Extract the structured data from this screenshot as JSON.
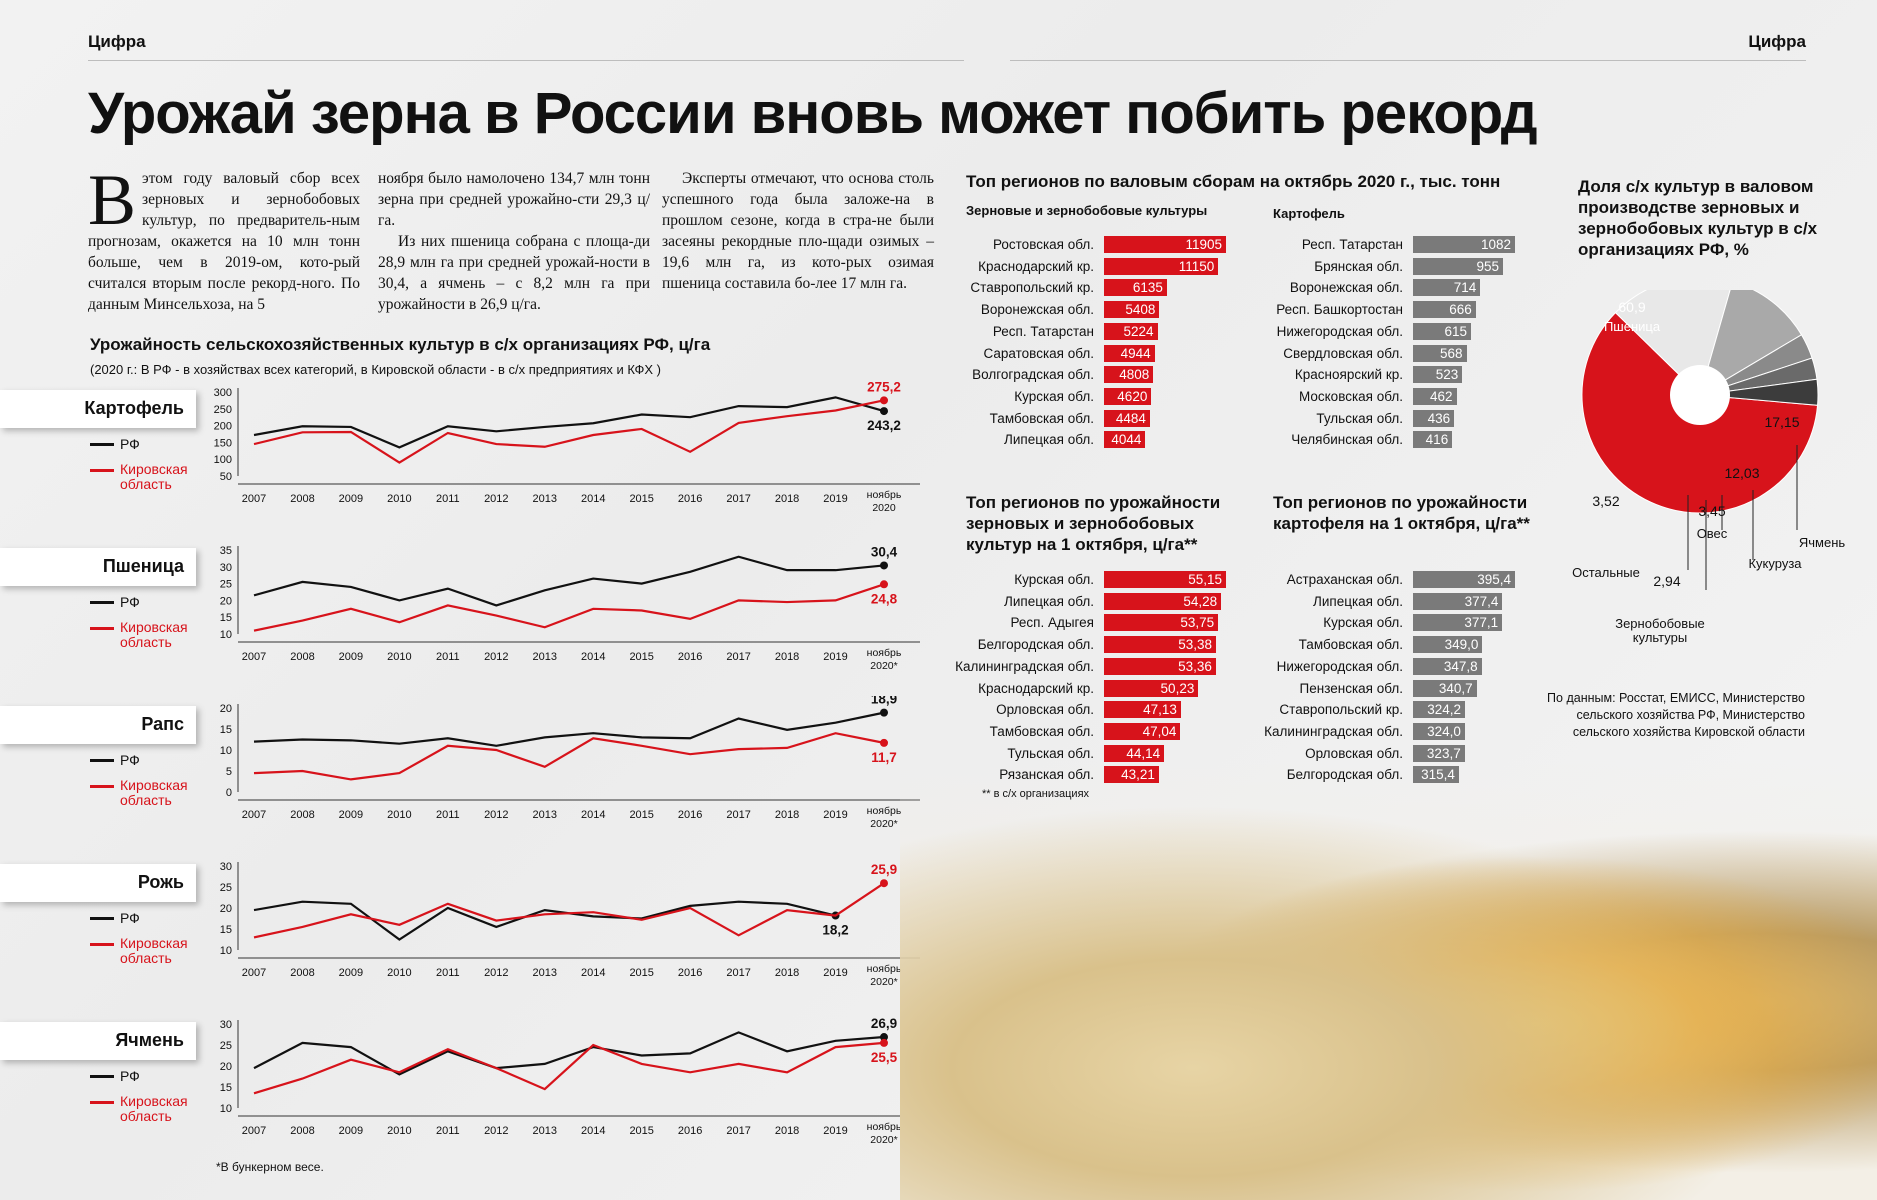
{
  "section_left": "Цифра",
  "section_right": "Цифра",
  "title": "Урожай зерна в России вновь   может побить рекорд",
  "article": {
    "dropcap": "В",
    "col1": "этом году валовый сбор всех зерновых и зернобобовых культур, по предваритель-ным прогнозам, окажется на 10 млн тонн больше, чем в 2019-ом, кото-рый считался вторым после рекорд-ного. По данным Минсельхоза, на 5",
    "col2_p1": "ноября было намолочено 134,7 млн тонн зерна при средней урожайно-сти 29,3 ц/га.",
    "col2_p2": "Из них пшеница собрана с площа-ди 28,9 млн га при средней урожай-ности в 30,4, а ячмень – с 8,2 млн га при урожайности в 26,9 ц/га.",
    "col3": "Эксперты отмечают, что основа столь успешного года была заложе-на в прошлом сезоне, когда в стра-не были засеяны рекордные пло-щади озимых – 19,6 млн га, из кото-рых озимая пшеница составила бо-лее 17 млн га."
  },
  "yield_title": "Урожайность сельскохозяйственных культур в с/х организациях РФ, ц/га",
  "yield_sub": "(2020 г.:  В РФ - в хозяйствах всех категорий, в Кировской области - в с/х предприятиях и КФХ )",
  "legend_rf": "РФ",
  "legend_kirov": "Кировская область",
  "footnote": "*В бункерном весе.",
  "regions_title": "Топ регионов по валовым сборам на октябрь 2020 г., тыс. тонн",
  "grain_sub": "Зерновые и зернобобовые культуры",
  "potato_sub": "Картофель",
  "yield_grain_title": "Топ регионов по урожайности зерновых и зернобобовых культур на 1 октября, ц/га**",
  "yield_potato_title": "Топ регионов по урожайности картофеля на 1 октября, ц/га**",
  "yield_note": "** в с/х организациях",
  "pie_title": "Доля с/х культур в валовом производстве зерновых и зернобобовых культур в с/х организациях РФ, %",
  "source": "По данным: Росстат, ЕМИСС, Министерство сельского хозяйства РФ, Министерство сельского хозяйства Кировской области",
  "colors": {
    "red": "#d7131b",
    "gray": "#7a7a7a",
    "black": "#111111",
    "light": "#e6e6e6"
  },
  "chart_data": [
    {
      "type": "line",
      "crop": "Картофель",
      "x": [
        "2007",
        "2008",
        "2009",
        "2010",
        "2011",
        "2012",
        "2013",
        "2014",
        "2015",
        "2016",
        "2017",
        "2018",
        "2019",
        "ноябрь 2020"
      ],
      "yticks": [
        50,
        100,
        150,
        200,
        250,
        300
      ],
      "ylim": [
        50,
        300
      ],
      "series": [
        {
          "name": "РФ",
          "values": [
            172,
            198,
            196,
            135,
            198,
            183,
            196,
            207,
            233,
            225,
            258,
            255,
            284,
            243.2
          ]
        },
        {
          "name": "Кировская область",
          "values": [
            145,
            180,
            181,
            90,
            178,
            145,
            137,
            172,
            190,
            122,
            208,
            228,
            245,
            275.2
          ]
        }
      ],
      "labels": {
        "rf_end": "243,2",
        "kirov_end": "275,2"
      }
    },
    {
      "type": "line",
      "crop": "Пшеница",
      "x": [
        "2007",
        "2008",
        "2009",
        "2010",
        "2011",
        "2012",
        "2013",
        "2014",
        "2015",
        "2016",
        "2017",
        "2018",
        "2019",
        "ноябрь 2020*"
      ],
      "yticks": [
        10,
        15,
        20,
        25,
        30,
        35
      ],
      "ylim": [
        10,
        35
      ],
      "series": [
        {
          "name": "РФ",
          "values": [
            21.5,
            25.5,
            24,
            20,
            23.5,
            18.5,
            23,
            26.5,
            25,
            28.5,
            33,
            29,
            29,
            30.4
          ]
        },
        {
          "name": "Кировская область",
          "values": [
            11,
            14,
            17.5,
            13.5,
            18.5,
            15.5,
            12,
            17.5,
            17,
            14.5,
            20,
            19.5,
            20,
            24.8
          ]
        }
      ],
      "labels": {
        "rf_end": "30,4",
        "kirov_end": "24,8"
      }
    },
    {
      "type": "line",
      "crop": "Рапс",
      "x": [
        "2007",
        "2008",
        "2009",
        "2010",
        "2011",
        "2012",
        "2013",
        "2014",
        "2015",
        "2016",
        "2017",
        "2018",
        "2019",
        "ноябрь 2020*"
      ],
      "yticks": [
        0,
        5,
        10,
        15,
        20
      ],
      "ylim": [
        0,
        20
      ],
      "series": [
        {
          "name": "РФ",
          "values": [
            12,
            12.5,
            12.3,
            11.5,
            12.8,
            11,
            13,
            14,
            13,
            12.8,
            17.5,
            14.8,
            16.5,
            18.9
          ]
        },
        {
          "name": "Кировская область",
          "values": [
            4.5,
            5,
            3,
            4.5,
            11,
            10,
            6,
            12.8,
            11,
            9,
            10.2,
            10.5,
            14,
            11.7
          ]
        }
      ],
      "labels": {
        "rf_end": "18,9",
        "kirov_end": "11,7"
      }
    },
    {
      "type": "line",
      "crop": "Рожь",
      "x": [
        "2007",
        "2008",
        "2009",
        "2010",
        "2011",
        "2012",
        "2013",
        "2014",
        "2015",
        "2016",
        "2017",
        "2018",
        "2019",
        "ноябрь 2020*"
      ],
      "yticks": [
        10,
        15,
        20,
        25,
        30
      ],
      "ylim": [
        10,
        30
      ],
      "series": [
        {
          "name": "РФ",
          "values": [
            19.5,
            21.5,
            21,
            12.5,
            20,
            15.5,
            19.5,
            18,
            17.5,
            20.5,
            21.5,
            21,
            18.2,
            null
          ]
        },
        {
          "name": "Кировская область",
          "values": [
            13,
            15.5,
            18.5,
            16,
            21,
            17,
            18.5,
            19,
            17.2,
            20,
            13.5,
            19.5,
            18.2,
            25.9
          ]
        }
      ],
      "labels": {
        "rf_end": "18,2",
        "kirov_end": "25,9"
      }
    },
    {
      "type": "line",
      "crop": "Ячмень",
      "x": [
        "2007",
        "2008",
        "2009",
        "2010",
        "2011",
        "2012",
        "2013",
        "2014",
        "2015",
        "2016",
        "2017",
        "2018",
        "2019",
        "ноябрь 2020*"
      ],
      "yticks": [
        10,
        15,
        20,
        25,
        30
      ],
      "ylim": [
        10,
        30
      ],
      "series": [
        {
          "name": "РФ",
          "values": [
            19.5,
            25.5,
            24.5,
            18,
            23.5,
            19.5,
            20.5,
            24.5,
            22.5,
            23,
            28,
            23.5,
            26,
            26.9
          ]
        },
        {
          "name": "Кировская область",
          "values": [
            13.5,
            17,
            21.5,
            18.5,
            24,
            19.5,
            14.5,
            25,
            20.5,
            18.5,
            20.5,
            18.5,
            24.5,
            25.5
          ]
        }
      ],
      "labels": {
        "rf_end": "26,9",
        "kirov_end": "25,5"
      }
    },
    {
      "type": "bar",
      "title": "Зерновые и зернобобовые культуры",
      "categories": [
        "Ростовская обл.",
        "Краснодарский кр.",
        "Ставропольский кр.",
        "Воронежская обл.",
        "Респ. Татарстан",
        "Саратовская обл.",
        "Волгоградская обл.",
        "Курская обл.",
        "Тамбовская обл.",
        "Липецкая обл."
      ],
      "values": [
        11905,
        11150,
        6135,
        5408,
        5224,
        4944,
        4808,
        4620,
        4484,
        4044
      ],
      "labels": [
        "11905",
        "11150",
        "6135",
        "5408",
        "5224",
        "4944",
        "4808",
        "4620",
        "4484",
        "4044"
      ]
    },
    {
      "type": "bar",
      "title": "Картофель",
      "categories": [
        "Респ. Татарстан",
        "Брянская обл.",
        "Воронежская обл.",
        "Респ. Башкортостан",
        "Нижегородская обл.",
        "Свердловская обл.",
        "Красноярский кр.",
        "Московская обл.",
        "Тульская обл.",
        "Челябинская обл."
      ],
      "values": [
        1082,
        955,
        714,
        666,
        615,
        568,
        523,
        462,
        436,
        416
      ],
      "labels": [
        "1082",
        "955",
        "714",
        "666",
        "615",
        "568",
        "523",
        "462",
        "436",
        "416"
      ]
    },
    {
      "type": "bar",
      "title": "Урожайность зерновых",
      "categories": [
        "Курская обл.",
        "Липецкая обл.",
        "Респ. Адыгея",
        "Белгородская обл.",
        "Калининградская обл.",
        "Краснодарский кр.",
        "Орловская обл.",
        "Тамбовская обл.",
        "Тульская обл.",
        "Рязанская обл."
      ],
      "values": [
        55.15,
        54.28,
        53.75,
        53.38,
        53.36,
        50.23,
        47.13,
        47.04,
        44.14,
        43.21
      ],
      "labels": [
        "55,15",
        "54,28",
        "53,75",
        "53,38",
        "53,36",
        "50,23",
        "47,13",
        "47,04",
        "44,14",
        "43,21"
      ]
    },
    {
      "type": "bar",
      "title": "Урожайность картофеля",
      "categories": [
        "Астраханская обл.",
        "Липецкая обл.",
        "Курская обл.",
        "Тамбовская обл.",
        "Нижегородская обл.",
        "Пензенская обл.",
        "Ставропольский кр.",
        "Калининградская обл.",
        "Орловская обл.",
        "Белгородская обл."
      ],
      "values": [
        395.4,
        377.4,
        377.1,
        349.0,
        347.8,
        340.7,
        324.2,
        324.0,
        323.7,
        315.4
      ],
      "labels": [
        "395,4",
        "377,4",
        "377,1",
        "349,0",
        "347,8",
        "340,7",
        "324,2",
        "324,0",
        "323,7",
        "315,4"
      ]
    },
    {
      "type": "pie",
      "slices": [
        {
          "name": "Пшеница",
          "value": 60.9,
          "label": "60,9",
          "color": "#d7131b"
        },
        {
          "name": "Ячмень",
          "value": 17.15,
          "label": "17,15",
          "color": "#e8e8e8"
        },
        {
          "name": "Кукуруза",
          "value": 12.03,
          "label": "12,03",
          "color": "#a9a9a9"
        },
        {
          "name": "Овес",
          "value": 3.45,
          "label": "3,45",
          "color": "#8a8a8a"
        },
        {
          "name": "Зернобобовые культуры",
          "value": 2.94,
          "label": "2,94",
          "color": "#6a6a6a"
        },
        {
          "name": "Остальные",
          "value": 3.52,
          "label": "3,52",
          "color": "#3c3c3c"
        }
      ]
    }
  ]
}
